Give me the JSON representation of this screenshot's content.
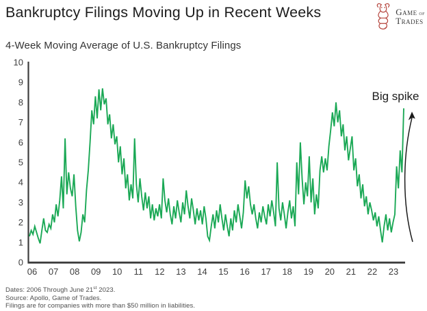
{
  "header": {
    "title": "Bankruptcy Filings Moving Up in Recent Weeks",
    "logo": {
      "word_game": "Game",
      "word_of": " of",
      "word_trades": "Trades",
      "bull_color": "#B5443C",
      "text_color": "#3A3A3A"
    }
  },
  "subtitle": "4-Week Moving Average of U.S. Bankruptcy Filings",
  "footnotes": {
    "line1_pre": "Dates: 2006 Through June 21",
    "line1_sup": "st",
    "line1_post": " 2023.",
    "line2": "Source: Apollo, Game of Trades.",
    "line3": "Filings are for companies with more than $50 million in liabilities."
  },
  "chart_data": {
    "type": "line",
    "title": "4-Week Moving Average of U.S. Bankruptcy Filings",
    "xlabel": "",
    "ylabel": "",
    "ylim": [
      0,
      10
    ],
    "yticks": [
      0,
      1,
      2,
      3,
      4,
      5,
      6,
      7,
      8,
      9,
      10
    ],
    "xtick_labels": [
      "06",
      "07",
      "08",
      "09",
      "10",
      "11",
      "12",
      "13",
      "14",
      "15",
      "16",
      "17",
      "18",
      "19",
      "20",
      "21",
      "22",
      "23"
    ],
    "x_start_year": 2006.0,
    "x_step_years": 0.08333,
    "grid": false,
    "legend": "none",
    "annotation": "Big spike",
    "line_color": "#1AA855",
    "axis_color": "#3D3D3D",
    "tick_label_color": "#3D3D3D",
    "arrow_color": "#1A1A1A",
    "series": [
      {
        "name": "4-week moving average of U.S. bankruptcy filings",
        "values": [
          1.3,
          1.6,
          1.4,
          1.8,
          1.5,
          1.2,
          0.95,
          1.6,
          2.2,
          1.6,
          1.5,
          1.9,
          1.7,
          2.4,
          2.0,
          2.9,
          2.3,
          3.1,
          4.3,
          2.7,
          6.2,
          3.4,
          4.5,
          3.7,
          3.3,
          4.4,
          2.8,
          1.6,
          1.05,
          1.5,
          2.4,
          2.0,
          3.6,
          4.6,
          6.0,
          7.6,
          6.9,
          8.3,
          7.2,
          8.65,
          7.6,
          8.7,
          7.9,
          8.2,
          6.9,
          7.4,
          6.2,
          6.9,
          5.9,
          6.3,
          5.0,
          5.8,
          4.4,
          5.2,
          3.7,
          4.4,
          3.1,
          3.9,
          3.2,
          6.2,
          3.9,
          3.0,
          4.2,
          3.3,
          2.6,
          3.5,
          2.7,
          3.3,
          2.2,
          2.9,
          2.1,
          2.7,
          2.3,
          2.9,
          2.2,
          4.2,
          3.1,
          2.5,
          3.2,
          2.4,
          1.9,
          2.8,
          2.2,
          3.1,
          2.5,
          2.0,
          3.0,
          2.4,
          3.6,
          2.8,
          2.2,
          3.2,
          2.6,
          1.9,
          2.7,
          2.1,
          2.6,
          1.9,
          2.8,
          2.2,
          1.3,
          1.1,
          1.8,
          2.4,
          1.7,
          2.6,
          2.0,
          2.9,
          2.2,
          1.6,
          2.4,
          1.8,
          1.3,
          2.2,
          1.6,
          2.6,
          2.0,
          2.9,
          2.3,
          1.7,
          2.5,
          4.1,
          3.2,
          3.8,
          2.9,
          2.4,
          2.9,
          2.2,
          1.7,
          2.5,
          2.0,
          2.8,
          2.3,
          1.9,
          2.9,
          2.3,
          3.1,
          2.5,
          1.8,
          5.0,
          2.7,
          2.1,
          3.0,
          2.4,
          1.7,
          2.5,
          3.1,
          2.2,
          2.8,
          1.8,
          5.0,
          3.4,
          6.0,
          4.2,
          2.9,
          4.0,
          3.3,
          5.3,
          3.0,
          4.2,
          2.4,
          3.4,
          2.7,
          4.6,
          5.3,
          4.5,
          5.2,
          4.6,
          5.8,
          6.6,
          7.5,
          6.8,
          8.0,
          7.0,
          7.6,
          6.3,
          6.9,
          5.6,
          6.3,
          5.1,
          5.7,
          6.3,
          4.6,
          5.2,
          3.8,
          4.4,
          3.2,
          3.9,
          2.8,
          3.3,
          2.4,
          3.0,
          2.6,
          2.1,
          2.5,
          1.8,
          2.3,
          1.6,
          1.0,
          1.8,
          2.4,
          1.6,
          2.2,
          1.5,
          2.0,
          2.4,
          4.8,
          3.7,
          5.6,
          4.5,
          7.7
        ]
      }
    ]
  }
}
